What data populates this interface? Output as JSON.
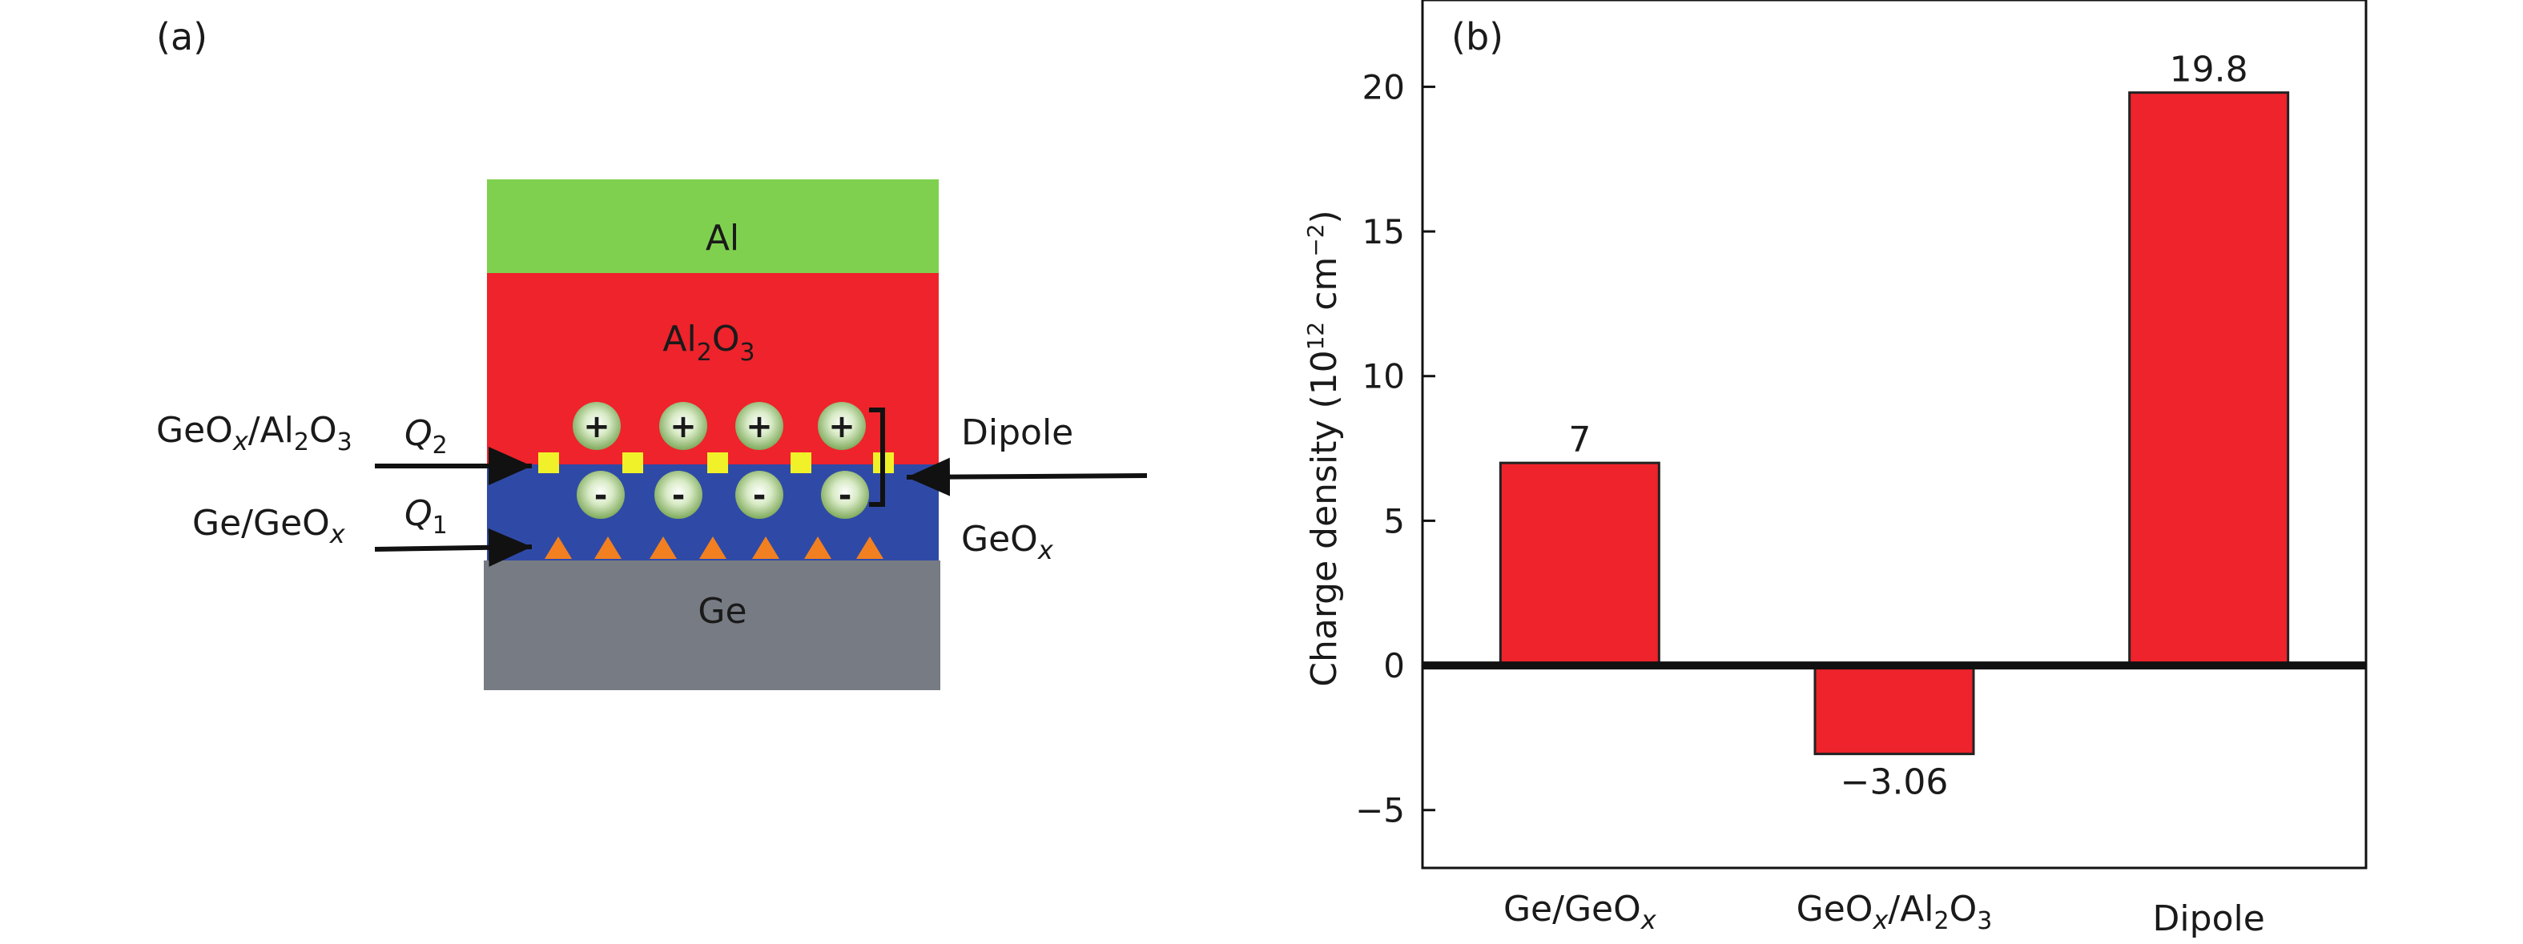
{
  "panel_a": {
    "label": "(a)",
    "layers": {
      "al": "Al",
      "al2o3": {
        "base": "Al",
        "sub1": "2",
        "mid": "O",
        "sub2": "3"
      },
      "geox": {
        "base": "GeO",
        "sub": "x"
      },
      "ge": "Ge"
    },
    "labels": {
      "geox_al2o3": {
        "a": "GeO",
        "x": "x",
        "b": "/Al",
        "s1": "2",
        "c": "O",
        "s2": "3"
      },
      "ge_geox": {
        "a": "Ge/GeO",
        "x": "x"
      },
      "q2": {
        "q": "Q",
        "sub": "2"
      },
      "q1": {
        "q": "Q",
        "sub": "1"
      },
      "dipole": "Dipole"
    },
    "charge_symbols": {
      "plus": "+",
      "minus": "-"
    },
    "colors": {
      "al": "#7fd04f",
      "al2o3": "#ee232b",
      "geox": "#2f4aa6",
      "ge": "#777b83",
      "interface_square": "#f1f12a",
      "trap_triangle": "#f28020",
      "ion": "#8ab86a"
    }
  },
  "panel_b": {
    "label": "(b)"
  },
  "chart_data": {
    "type": "bar",
    "categories": [
      "Ge/GeOx",
      "GeOx/Al2O3",
      "Dipole"
    ],
    "category_labels": [
      {
        "a": "Ge/GeO",
        "x": "x",
        "b": "",
        "s1": "",
        "c": "",
        "s2": ""
      },
      {
        "a": "GeO",
        "x": "x",
        "b": "/Al",
        "s1": "2",
        "c": "O",
        "s2": "3"
      },
      {
        "a": "Dipole",
        "x": "",
        "b": "",
        "s1": "",
        "c": "",
        "s2": ""
      }
    ],
    "values": [
      7,
      -3.06,
      19.8
    ],
    "value_labels": [
      "7",
      "−3.06",
      "19.8"
    ],
    "ylabel": {
      "pre": "Charge density (10",
      "exp1": "12",
      "mid": " cm",
      "exp2": "−2",
      "post": ")"
    },
    "ylim": [
      -7,
      23
    ],
    "yticks": [
      -5,
      0,
      5,
      10,
      15,
      20
    ],
    "ytick_labels": [
      "−5",
      "0",
      "5",
      "10",
      "15",
      "20"
    ],
    "bar_color": "#ee232b",
    "grid": false
  }
}
